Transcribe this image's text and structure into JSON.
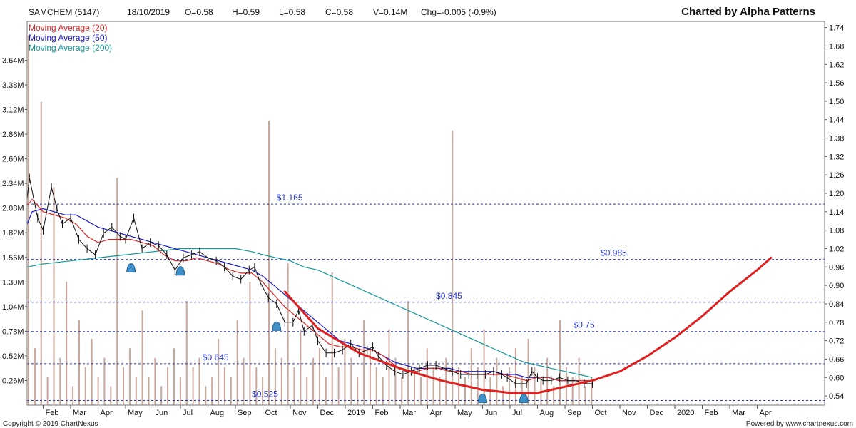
{
  "header": {
    "symbol": "SAMCHEM (5147)",
    "date": "18/10/2019",
    "open": "O=0.58",
    "high": "H=0.59",
    "low": "L=0.58",
    "close": "C=0.58",
    "volume": "V=0.14M",
    "change": "Chg=-0.005 (-0.9%)",
    "brand": "Charted by Alpha Patterns"
  },
  "footer": {
    "copyright": "Copyright © 2019 ChartNexus",
    "powered": "Powered by www.chartnexus.com"
  },
  "colors": {
    "ma20": "#dd2222",
    "ma50": "#1a1acc",
    "ma200": "#119999",
    "level": "#2233cc",
    "projection": "#e02020",
    "marker": "#3f8fc9",
    "volume": "#c8a89a"
  },
  "chart_data": {
    "type": "line",
    "price_axis": {
      "ticks": [
        "1.74",
        "1.68",
        "1.62",
        "1.56",
        "1.50",
        "1.44",
        "1.38",
        "1.32",
        "1.26",
        "1.20",
        "1.14",
        "1.08",
        "1.02",
        "0.96",
        "0.90",
        "0.84",
        "0.78",
        "0.72",
        "0.66",
        "0.60",
        "0.54"
      ],
      "ylim": [
        0.51,
        1.76
      ]
    },
    "volume_axis": {
      "ticks": [
        "3.64M",
        "3.38M",
        "3.12M",
        "2.86M",
        "2.60M",
        "2.34M",
        "2.08M",
        "1.82M",
        "1.56M",
        "1.30M",
        "1.04M",
        "0.78M",
        "0.52M",
        "0.26M"
      ],
      "ylim": [
        0,
        4.05
      ]
    },
    "x_axis": {
      "labels": [
        {
          "t": "Feb",
          "m": 1
        },
        {
          "t": "Mar",
          "m": 2
        },
        {
          "t": "Apr",
          "m": 3
        },
        {
          "t": "May",
          "m": 4
        },
        {
          "t": "Jun",
          "m": 5
        },
        {
          "t": "Jul",
          "m": 6
        },
        {
          "t": "Aug",
          "m": 7
        },
        {
          "t": "Sep",
          "m": 8
        },
        {
          "t": "Oct",
          "m": 9
        },
        {
          "t": "Nov",
          "m": 10
        },
        {
          "t": "Dec",
          "m": 11
        },
        {
          "t": "2019",
          "m": 12
        },
        {
          "t": "Feb",
          "m": 13
        },
        {
          "t": "Mar",
          "m": 14
        },
        {
          "t": "Apr",
          "m": 15
        },
        {
          "t": "May",
          "m": 16
        },
        {
          "t": "Jun",
          "m": 17
        },
        {
          "t": "Jul",
          "m": 18
        },
        {
          "t": "Aug",
          "m": 19
        },
        {
          "t": "Sep",
          "m": 20
        },
        {
          "t": "Oct",
          "m": 21
        },
        {
          "t": "Nov",
          "m": 22
        },
        {
          "t": "Dec",
          "m": 23
        },
        {
          "t": "2020",
          "m": 24
        },
        {
          "t": "Feb",
          "m": 25
        },
        {
          "t": "Mar",
          "m": 26
        },
        {
          "t": "Apr",
          "m": 27
        }
      ]
    },
    "legend": [
      {
        "name": "Moving Average (20)",
        "color": "#dd2222"
      },
      {
        "name": "Moving Average (50)",
        "color": "#1a1acc"
      },
      {
        "name": "Moving Average (200)",
        "color": "#119999"
      }
    ],
    "levels": [
      {
        "value": 1.165,
        "label": "$1.165",
        "label_m": 9.5
      },
      {
        "value": 0.985,
        "label": "$0.985",
        "label_m": 21.3
      },
      {
        "value": 0.845,
        "label": "$0.845",
        "label_m": 15.3
      },
      {
        "value": 0.75,
        "label": "$0.75",
        "label_m": 20.3
      },
      {
        "value": 0.645,
        "label": "$0.645",
        "label_m": 6.8
      },
      {
        "value": 0.525,
        "label": "$0.525",
        "label_m": 8.6
      }
    ],
    "price": [
      [
        0.2,
        1.18
      ],
      [
        0.5,
        1.25
      ],
      [
        0.8,
        1.12
      ],
      [
        1.0,
        1.08
      ],
      [
        1.3,
        1.22
      ],
      [
        1.5,
        1.15
      ],
      [
        1.7,
        1.1
      ],
      [
        2.0,
        1.12
      ],
      [
        2.3,
        1.05
      ],
      [
        2.6,
        1.02
      ],
      [
        2.9,
        1.0
      ],
      [
        3.2,
        1.07
      ],
      [
        3.5,
        1.09
      ],
      [
        3.8,
        1.06
      ],
      [
        4.0,
        1.05
      ],
      [
        4.3,
        1.12
      ],
      [
        4.6,
        1.02
      ],
      [
        4.9,
        1.04
      ],
      [
        5.2,
        1.03
      ],
      [
        5.5,
        1.0
      ],
      [
        5.8,
        0.95
      ],
      [
        6.1,
        0.99
      ],
      [
        6.4,
        1.0
      ],
      [
        6.7,
        1.01
      ],
      [
        7.0,
        0.99
      ],
      [
        7.3,
        0.98
      ],
      [
        7.6,
        0.96
      ],
      [
        7.9,
        0.93
      ],
      [
        8.2,
        0.92
      ],
      [
        8.5,
        0.95
      ],
      [
        8.7,
        0.96
      ],
      [
        8.9,
        0.91
      ],
      [
        9.2,
        0.86
      ],
      [
        9.5,
        0.84
      ],
      [
        9.8,
        0.78
      ],
      [
        10.1,
        0.78
      ],
      [
        10.3,
        0.82
      ],
      [
        10.5,
        0.75
      ],
      [
        10.8,
        0.77
      ],
      [
        11.0,
        0.72
      ],
      [
        11.3,
        0.68
      ],
      [
        11.6,
        0.68
      ],
      [
        11.9,
        0.69
      ],
      [
        12.2,
        0.71
      ],
      [
        12.5,
        0.68
      ],
      [
        12.8,
        0.69
      ],
      [
        13.0,
        0.7
      ],
      [
        13.2,
        0.67
      ],
      [
        13.5,
        0.64
      ],
      [
        13.8,
        0.62
      ],
      [
        14.1,
        0.61
      ],
      [
        14.4,
        0.62
      ],
      [
        14.7,
        0.63
      ],
      [
        15.0,
        0.64
      ],
      [
        15.3,
        0.64
      ],
      [
        15.6,
        0.63
      ],
      [
        15.9,
        0.62
      ],
      [
        16.2,
        0.61
      ],
      [
        16.5,
        0.61
      ],
      [
        16.8,
        0.61
      ],
      [
        17.1,
        0.61
      ],
      [
        17.4,
        0.62
      ],
      [
        17.7,
        0.61
      ],
      [
        17.9,
        0.6
      ],
      [
        18.2,
        0.58
      ],
      [
        18.4,
        0.58
      ],
      [
        18.6,
        0.58
      ],
      [
        18.8,
        0.62
      ],
      [
        19.0,
        0.6
      ],
      [
        19.2,
        0.59
      ],
      [
        19.5,
        0.59
      ],
      [
        19.8,
        0.6
      ],
      [
        20.1,
        0.59
      ],
      [
        20.4,
        0.59
      ],
      [
        20.7,
        0.58
      ],
      [
        21.0,
        0.58
      ]
    ],
    "ma20": [
      [
        0.3,
        1.16
      ],
      [
        0.6,
        1.18
      ],
      [
        1.0,
        1.14
      ],
      [
        1.4,
        1.13
      ],
      [
        1.8,
        1.12
      ],
      [
        2.2,
        1.1
      ],
      [
        2.6,
        1.06
      ],
      [
        3.0,
        1.04
      ],
      [
        3.4,
        1.05
      ],
      [
        3.8,
        1.05
      ],
      [
        4.2,
        1.05
      ],
      [
        4.6,
        1.04
      ],
      [
        5.0,
        1.03
      ],
      [
        5.4,
        1.0
      ],
      [
        5.8,
        0.98
      ],
      [
        6.2,
        0.98
      ],
      [
        6.6,
        0.99
      ],
      [
        7.0,
        0.98
      ],
      [
        7.4,
        0.97
      ],
      [
        7.8,
        0.95
      ],
      [
        8.2,
        0.94
      ],
      [
        8.6,
        0.94
      ],
      [
        9.0,
        0.91
      ],
      [
        9.4,
        0.87
      ],
      [
        9.8,
        0.83
      ],
      [
        10.2,
        0.8
      ],
      [
        10.6,
        0.77
      ],
      [
        11.0,
        0.74
      ],
      [
        11.4,
        0.71
      ],
      [
        11.8,
        0.7
      ],
      [
        12.2,
        0.7
      ],
      [
        12.6,
        0.69
      ],
      [
        13.0,
        0.69
      ],
      [
        13.4,
        0.67
      ],
      [
        13.8,
        0.64
      ],
      [
        14.2,
        0.62
      ],
      [
        14.6,
        0.62
      ],
      [
        15.0,
        0.63
      ],
      [
        15.4,
        0.63
      ],
      [
        15.8,
        0.62
      ],
      [
        16.2,
        0.62
      ],
      [
        16.6,
        0.61
      ],
      [
        17.0,
        0.61
      ],
      [
        17.4,
        0.61
      ],
      [
        17.8,
        0.61
      ],
      [
        18.2,
        0.6
      ],
      [
        18.6,
        0.59
      ],
      [
        19.0,
        0.6
      ],
      [
        19.4,
        0.6
      ],
      [
        19.8,
        0.59
      ],
      [
        20.2,
        0.59
      ],
      [
        20.6,
        0.59
      ],
      [
        21.0,
        0.59
      ]
    ],
    "ma50": [
      [
        0.3,
        1.1
      ],
      [
        0.6,
        1.14
      ],
      [
        1.0,
        1.15
      ],
      [
        1.4,
        1.14
      ],
      [
        1.8,
        1.13
      ],
      [
        2.2,
        1.13
      ],
      [
        2.6,
        1.11
      ],
      [
        3.0,
        1.09
      ],
      [
        3.4,
        1.08
      ],
      [
        3.8,
        1.07
      ],
      [
        4.2,
        1.06
      ],
      [
        4.6,
        1.05
      ],
      [
        5.0,
        1.04
      ],
      [
        5.4,
        1.03
      ],
      [
        5.8,
        1.02
      ],
      [
        6.2,
        1.01
      ],
      [
        6.6,
        1.0
      ],
      [
        7.0,
        0.99
      ],
      [
        7.4,
        0.98
      ],
      [
        7.8,
        0.97
      ],
      [
        8.2,
        0.96
      ],
      [
        8.6,
        0.95
      ],
      [
        9.0,
        0.93
      ],
      [
        9.4,
        0.9
      ],
      [
        9.8,
        0.87
      ],
      [
        10.2,
        0.84
      ],
      [
        10.6,
        0.81
      ],
      [
        11.0,
        0.78
      ],
      [
        11.4,
        0.75
      ],
      [
        11.8,
        0.72
      ],
      [
        12.2,
        0.71
      ],
      [
        12.6,
        0.7
      ],
      [
        13.0,
        0.69
      ],
      [
        13.4,
        0.67
      ],
      [
        13.8,
        0.65
      ],
      [
        14.2,
        0.64
      ],
      [
        14.6,
        0.63
      ],
      [
        15.0,
        0.63
      ],
      [
        15.4,
        0.63
      ],
      [
        15.8,
        0.63
      ],
      [
        16.2,
        0.62
      ],
      [
        16.6,
        0.62
      ],
      [
        17.0,
        0.62
      ],
      [
        17.4,
        0.62
      ],
      [
        17.8,
        0.61
      ],
      [
        18.2,
        0.61
      ],
      [
        18.6,
        0.6
      ],
      [
        19.0,
        0.6
      ],
      [
        19.4,
        0.6
      ],
      [
        19.8,
        0.59
      ],
      [
        20.2,
        0.59
      ],
      [
        20.6,
        0.59
      ],
      [
        21.0,
        0.59
      ]
    ],
    "ma200": [
      [
        0.0,
        0.96
      ],
      [
        1.0,
        0.97
      ],
      [
        2.0,
        0.98
      ],
      [
        3.0,
        0.99
      ],
      [
        4.0,
        1.0
      ],
      [
        5.0,
        1.01
      ],
      [
        6.0,
        1.02
      ],
      [
        7.0,
        1.02
      ],
      [
        8.0,
        1.02
      ],
      [
        8.6,
        1.01
      ],
      [
        9.0,
        1.0
      ],
      [
        9.5,
        0.99
      ],
      [
        10.0,
        0.98
      ],
      [
        10.5,
        0.96
      ],
      [
        11.0,
        0.95
      ],
      [
        11.5,
        0.93
      ],
      [
        12.0,
        0.91
      ],
      [
        12.5,
        0.89
      ],
      [
        13.0,
        0.87
      ],
      [
        13.5,
        0.85
      ],
      [
        14.0,
        0.83
      ],
      [
        14.5,
        0.81
      ],
      [
        15.0,
        0.79
      ],
      [
        15.5,
        0.77
      ],
      [
        16.0,
        0.75
      ],
      [
        16.5,
        0.73
      ],
      [
        17.0,
        0.71
      ],
      [
        17.5,
        0.69
      ],
      [
        18.0,
        0.67
      ],
      [
        18.5,
        0.65
      ],
      [
        19.0,
        0.64
      ],
      [
        19.5,
        0.63
      ],
      [
        20.0,
        0.62
      ],
      [
        20.5,
        0.61
      ],
      [
        21.0,
        0.6
      ]
    ],
    "projection": [
      [
        9.8,
        0.88
      ],
      [
        11.0,
        0.76
      ],
      [
        12.5,
        0.68
      ],
      [
        14.0,
        0.63
      ],
      [
        15.5,
        0.59
      ],
      [
        17.0,
        0.56
      ],
      [
        18.0,
        0.55
      ],
      [
        19.0,
        0.55
      ],
      [
        20.0,
        0.57
      ],
      [
        21.0,
        0.59
      ],
      [
        22.0,
        0.62
      ],
      [
        23.0,
        0.67
      ],
      [
        24.0,
        0.73
      ],
      [
        25.0,
        0.8
      ],
      [
        26.0,
        0.88
      ],
      [
        27.0,
        0.95
      ],
      [
        27.5,
        0.99
      ]
    ],
    "markers": [
      {
        "m": 4.2,
        "value": 0.955
      },
      {
        "m": 6.0,
        "value": 0.945
      },
      {
        "m": 9.5,
        "value": 0.765
      },
      {
        "m": 17.0,
        "value": 0.53
      },
      {
        "m": 18.5,
        "value": 0.53
      }
    ],
    "volume": [
      3.9,
      0.6,
      3.2,
      0.3,
      2.3,
      0.5,
      1.3,
      0.2,
      0.9,
      0.4,
      0.7,
      0.3,
      0.5,
      0.2,
      2.4,
      0.4,
      0.6,
      0.3,
      1.0,
      0.3,
      0.5,
      0.2,
      0.4,
      0.6,
      0.3,
      1.1,
      0.4,
      0.5,
      0.2,
      0.3,
      0.7,
      0.4,
      0.3,
      0.9,
      0.5,
      1.3,
      0.4,
      0.3,
      3.0,
      0.6,
      0.5,
      1.5,
      0.4,
      0.8,
      0.3,
      0.5,
      0.6,
      0.3,
      1.4,
      0.4,
      0.7,
      0.5,
      0.3,
      0.9,
      0.6,
      0.4,
      0.3,
      0.8,
      0.5,
      0.3,
      1.1,
      0.4,
      0.3,
      0.6,
      0.4,
      0.3,
      0.5,
      2.9,
      0.4,
      0.3,
      0.6,
      0.4,
      0.8,
      0.3,
      0.5,
      0.2,
      0.4,
      0.6,
      0.3,
      0.7,
      0.4,
      0.3,
      0.5,
      0.2,
      0.9,
      0.4,
      0.3,
      0.5,
      0.2,
      0.3
    ]
  }
}
